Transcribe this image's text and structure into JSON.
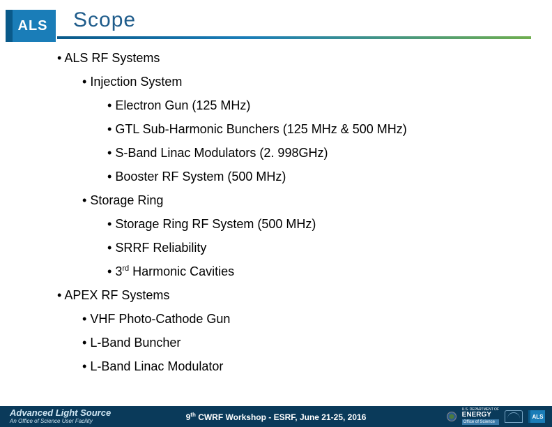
{
  "logo": {
    "text": "ALS"
  },
  "title": "Scope",
  "colors": {
    "title_color": "#1f5c8b",
    "rule_gradient_from": "#0a5a8a",
    "rule_gradient_mid": "#1a7db8",
    "rule_gradient_to": "#6fae4f",
    "footer_bg": "#0a3a5a",
    "logo_bg": "#1a7db8",
    "logo_bar": "#0a5a8a"
  },
  "outline": {
    "a": "ALS RF Systems",
    "a1": "Injection System",
    "a1a": "Electron Gun (125 MHz)",
    "a1b": "GTL Sub-Harmonic Bunchers (125 MHz & 500 MHz)",
    "a1c": "S-Band Linac Modulators (2. 998GHz)",
    "a1d": "Booster RF System (500 MHz)",
    "a2": "Storage Ring",
    "a2a": "Storage Ring RF System (500 MHz)",
    "a2b": "SRRF Reliability",
    "a2c_pre": "3",
    "a2c_sup": "rd",
    "a2c_post": " Harmonic Cavities",
    "b": "APEX RF Systems",
    "b1": "VHF Photo-Cathode Gun",
    "b2": "L-Band Buncher",
    "b3": "L-Band Linac Modulator"
  },
  "footer": {
    "left_main": "Advanced Light Source",
    "left_sub": "An Office of Science User Facility",
    "center_pre": "9",
    "center_sup": "th",
    "center_post": " CWRF Workshop - ESRF, June 21-25, 2016",
    "doe_dept": "U.S. DEPARTMENT OF",
    "doe_energy": "ENERGY",
    "doe_office": "Office of Science",
    "als_mini": "ALS"
  }
}
